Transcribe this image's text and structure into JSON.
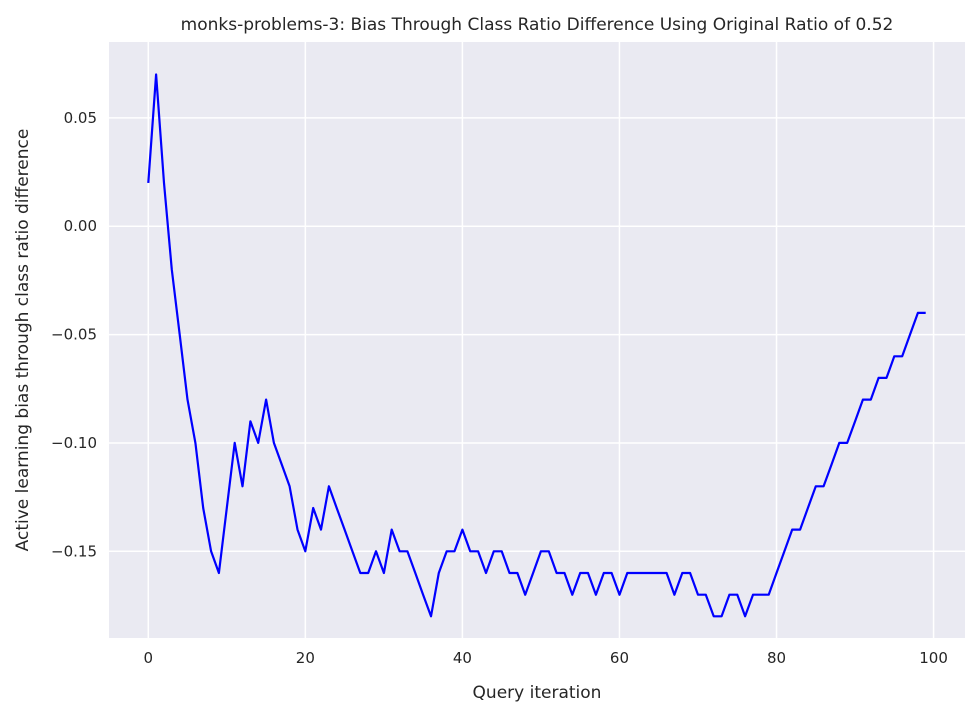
{
  "chart_data": {
    "type": "line",
    "title": "monks-problems-3: Bias Through Class Ratio Difference Using Original Ratio of 0.52",
    "xlabel": "Query iteration",
    "ylabel": "Active learning bias through class ratio difference",
    "xlim": [
      -5,
      104
    ],
    "ylim": [
      -0.19,
      0.085
    ],
    "xticks": [
      0,
      20,
      40,
      60,
      80,
      100
    ],
    "xtick_labels": [
      "0",
      "20",
      "40",
      "60",
      "80",
      "100"
    ],
    "yticks": [
      0.05,
      0.0,
      -0.05,
      -0.1,
      -0.15
    ],
    "ytick_labels": [
      "0.05",
      "0.00",
      "−0.05",
      "−0.10",
      "−0.15"
    ],
    "grid": true,
    "background": "#EAEAF2",
    "grid_color": "#FFFFFF",
    "series": [
      {
        "color": "#0000FF",
        "x": [
          0,
          1,
          2,
          3,
          4,
          5,
          6,
          7,
          8,
          9,
          10,
          11,
          12,
          13,
          14,
          15,
          16,
          17,
          18,
          19,
          20,
          21,
          22,
          23,
          24,
          25,
          26,
          27,
          28,
          29,
          30,
          31,
          32,
          33,
          34,
          35,
          36,
          37,
          38,
          39,
          40,
          41,
          42,
          43,
          44,
          45,
          46,
          47,
          48,
          49,
          50,
          51,
          52,
          53,
          54,
          55,
          56,
          57,
          58,
          59,
          60,
          61,
          62,
          63,
          64,
          65,
          66,
          67,
          68,
          69,
          70,
          71,
          72,
          73,
          74,
          75,
          76,
          77,
          78,
          79,
          80,
          81,
          82,
          83,
          84,
          85,
          86,
          87,
          88,
          89,
          90,
          91,
          92,
          93,
          94,
          95,
          96,
          97,
          98,
          99
        ],
        "y": [
          0.02,
          0.07,
          0.02,
          -0.02,
          -0.05,
          -0.08,
          -0.1,
          -0.13,
          -0.15,
          -0.16,
          -0.13,
          -0.1,
          -0.12,
          -0.09,
          -0.1,
          -0.08,
          -0.1,
          -0.11,
          -0.12,
          -0.14,
          -0.15,
          -0.13,
          -0.14,
          -0.12,
          -0.13,
          -0.14,
          -0.15,
          -0.16,
          -0.16,
          -0.15,
          -0.16,
          -0.14,
          -0.15,
          -0.15,
          -0.16,
          -0.17,
          -0.18,
          -0.16,
          -0.15,
          -0.15,
          -0.14,
          -0.15,
          -0.15,
          -0.16,
          -0.15,
          -0.15,
          -0.16,
          -0.16,
          -0.17,
          -0.16,
          -0.15,
          -0.15,
          -0.16,
          -0.16,
          -0.17,
          -0.16,
          -0.16,
          -0.17,
          -0.16,
          -0.16,
          -0.17,
          -0.16,
          -0.16,
          -0.16,
          -0.16,
          -0.16,
          -0.16,
          -0.17,
          -0.16,
          -0.16,
          -0.17,
          -0.17,
          -0.18,
          -0.18,
          -0.17,
          -0.17,
          -0.18,
          -0.17,
          -0.17,
          -0.17,
          -0.16,
          -0.15,
          -0.14,
          -0.14,
          -0.13,
          -0.12,
          -0.12,
          -0.11,
          -0.1,
          -0.1,
          -0.09,
          -0.08,
          -0.08,
          -0.07,
          -0.07,
          -0.06,
          -0.06,
          -0.05,
          -0.04,
          -0.04
        ]
      }
    ]
  }
}
